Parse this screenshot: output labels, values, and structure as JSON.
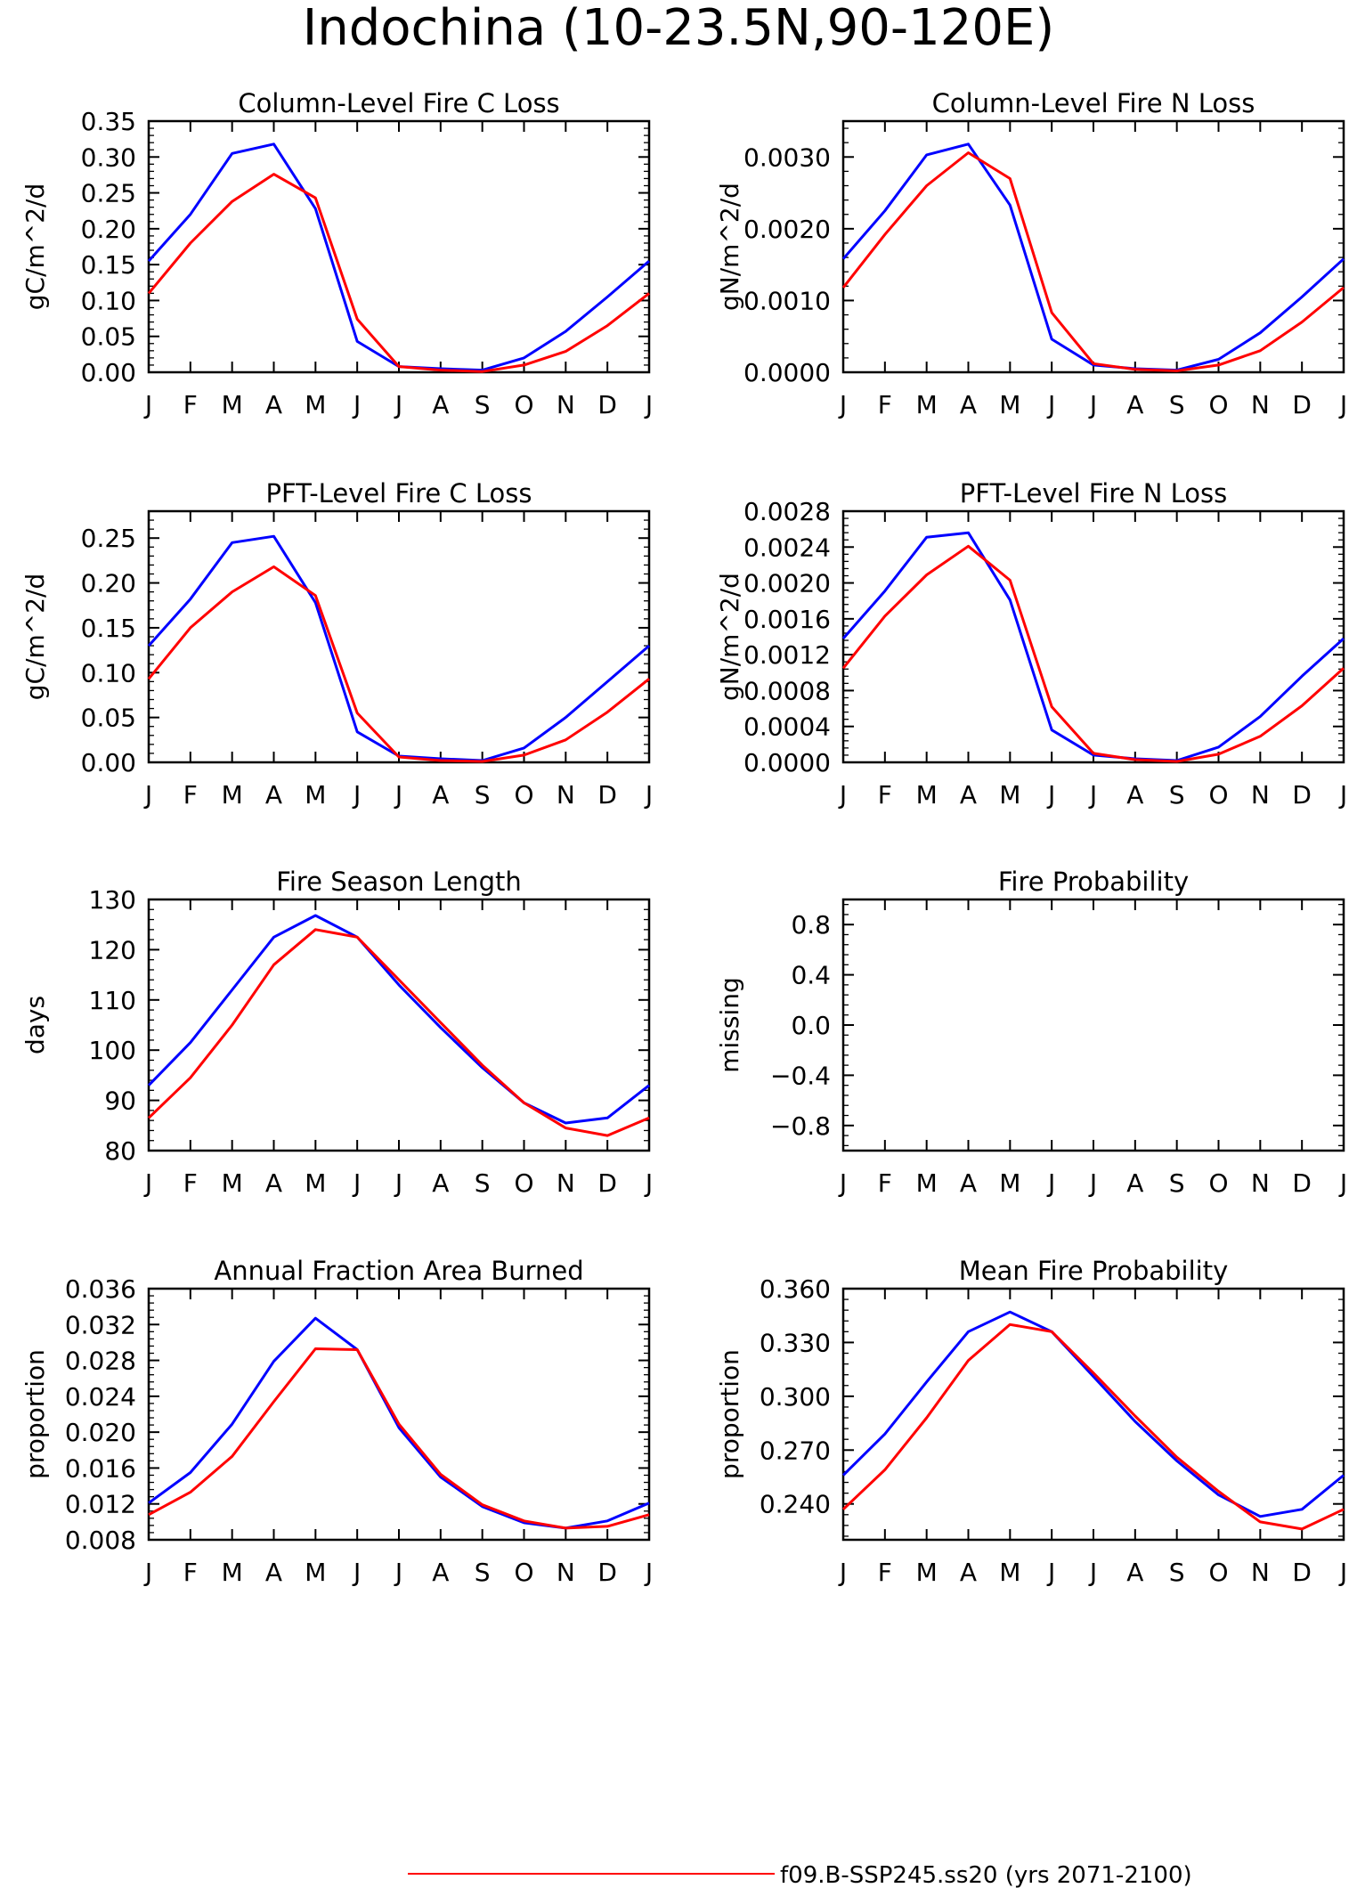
{
  "figure": {
    "title": "Indochina (10-23.5N,90-120E)",
    "legend": [
      {
        "label": "f09.B-SSP245.ss20 (yrs 2071-2100)",
        "color": "#ff0000"
      }
    ]
  },
  "chart_data": [
    {
      "type": "line",
      "title": "Column-Level Fire C Loss",
      "ylabel": "gC/m^2/d",
      "categories": [
        "J",
        "F",
        "M",
        "A",
        "M",
        "J",
        "J",
        "A",
        "S",
        "O",
        "N",
        "D",
        "J"
      ],
      "ylim": [
        0,
        0.35
      ],
      "yticks": [
        "0.00",
        "0.05",
        "0.10",
        "0.15",
        "0.20",
        "0.25",
        "0.30",
        "0.35"
      ],
      "series": [
        {
          "color": "#0000ff",
          "values": [
            0.155,
            0.22,
            0.305,
            0.318,
            0.228,
            0.043,
            0.008,
            0.005,
            0.003,
            0.02,
            0.057,
            0.105,
            0.155
          ]
        },
        {
          "color": "#ff0000",
          "values": [
            0.11,
            0.18,
            0.238,
            0.276,
            0.243,
            0.074,
            0.008,
            0.003,
            0.001,
            0.01,
            0.029,
            0.065,
            0.11
          ]
        }
      ]
    },
    {
      "type": "line",
      "title": "Column-Level Fire N Loss",
      "ylabel": "gN/m^2/d",
      "categories": [
        "J",
        "F",
        "M",
        "A",
        "M",
        "J",
        "J",
        "A",
        "S",
        "O",
        "N",
        "D",
        "J"
      ],
      "ylim": [
        0,
        0.0035
      ],
      "yticks": [
        "0.0000",
        "0.0010",
        "0.0020",
        "0.0030"
      ],
      "ytick_values": [
        0,
        0.001,
        0.002,
        0.003
      ],
      "series": [
        {
          "color": "#0000ff",
          "values": [
            0.00158,
            0.00225,
            0.00303,
            0.00318,
            0.00233,
            0.00046,
            0.0001,
            5e-05,
            3e-05,
            0.00018,
            0.00055,
            0.00105,
            0.00158
          ]
        },
        {
          "color": "#ff0000",
          "values": [
            0.00118,
            0.00192,
            0.0026,
            0.00306,
            0.0027,
            0.00083,
            0.00012,
            4e-05,
            2e-05,
            0.0001,
            0.0003,
            0.0007,
            0.00118
          ]
        }
      ]
    },
    {
      "type": "line",
      "title": "PFT-Level Fire C Loss",
      "ylabel": "gC/m^2/d",
      "categories": [
        "J",
        "F",
        "M",
        "A",
        "M",
        "J",
        "J",
        "A",
        "S",
        "O",
        "N",
        "D",
        "J"
      ],
      "ylim": [
        0,
        0.28
      ],
      "yticks": [
        "0.00",
        "0.05",
        "0.10",
        "0.15",
        "0.20",
        "0.25"
      ],
      "ytick_values": [
        0,
        0.05,
        0.1,
        0.15,
        0.2,
        0.25
      ],
      "series": [
        {
          "color": "#0000ff",
          "values": [
            0.13,
            0.182,
            0.245,
            0.252,
            0.178,
            0.034,
            0.007,
            0.004,
            0.002,
            0.016,
            0.05,
            0.09,
            0.13
          ]
        },
        {
          "color": "#ff0000",
          "values": [
            0.093,
            0.15,
            0.19,
            0.218,
            0.186,
            0.055,
            0.006,
            0.002,
            0.001,
            0.008,
            0.025,
            0.056,
            0.093
          ]
        }
      ]
    },
    {
      "type": "line",
      "title": "PFT-Level Fire N Loss",
      "ylabel": "gN/m^2/d",
      "categories": [
        "J",
        "F",
        "M",
        "A",
        "M",
        "J",
        "J",
        "A",
        "S",
        "O",
        "N",
        "D",
        "J"
      ],
      "ylim": [
        0,
        0.0028
      ],
      "yticks": [
        "0.0000",
        "0.0004",
        "0.0008",
        "0.0012",
        "0.0016",
        "0.0020",
        "0.0024",
        "0.0028"
      ],
      "series": [
        {
          "color": "#0000ff",
          "values": [
            0.00138,
            0.00191,
            0.00251,
            0.00256,
            0.00181,
            0.00036,
            8e-05,
            4e-05,
            2e-05,
            0.00017,
            0.00051,
            0.00096,
            0.00138
          ]
        },
        {
          "color": "#ff0000",
          "values": [
            0.00105,
            0.00163,
            0.00209,
            0.00241,
            0.00203,
            0.00062,
            0.0001,
            3e-05,
            1e-05,
            9e-05,
            0.00029,
            0.00063,
            0.00105
          ]
        }
      ]
    },
    {
      "type": "line",
      "title": "Fire Season Length",
      "ylabel": "days",
      "categories": [
        "J",
        "F",
        "M",
        "A",
        "M",
        "J",
        "J",
        "A",
        "S",
        "O",
        "N",
        "D",
        "J"
      ],
      "ylim": [
        80,
        130
      ],
      "yticks": [
        "80",
        "90",
        "100",
        "110",
        "120",
        "130"
      ],
      "series": [
        {
          "color": "#0000ff",
          "values": [
            93,
            101.5,
            112,
            122.5,
            126.8,
            122.5,
            113,
            104.5,
            96.5,
            89.5,
            85.5,
            86.5,
            93
          ]
        },
        {
          "color": "#ff0000",
          "values": [
            86.5,
            94.5,
            105,
            117,
            124,
            122.5,
            114,
            105.5,
            97,
            89.5,
            84.5,
            83,
            86.5
          ]
        }
      ]
    },
    {
      "type": "line",
      "title": "Fire Probability",
      "ylabel": "missing",
      "categories": [
        "J",
        "F",
        "M",
        "A",
        "M",
        "J",
        "J",
        "A",
        "S",
        "O",
        "N",
        "D",
        "J"
      ],
      "ylim": [
        -1,
        1
      ],
      "yticks": [
        "-0.8",
        "-0.4",
        "0.0",
        "0.4",
        "0.8"
      ],
      "ytick_values": [
        -0.8,
        -0.4,
        0,
        0.4,
        0.8
      ],
      "series": []
    },
    {
      "type": "line",
      "title": "Annual Fraction Area Burned",
      "ylabel": "proportion",
      "categories": [
        "J",
        "F",
        "M",
        "A",
        "M",
        "J",
        "J",
        "A",
        "S",
        "O",
        "N",
        "D",
        "J"
      ],
      "ylim": [
        0.008,
        0.036
      ],
      "yticks": [
        "0.008",
        "0.012",
        "0.016",
        "0.020",
        "0.024",
        "0.028",
        "0.032",
        "0.036"
      ],
      "series": [
        {
          "color": "#0000ff",
          "values": [
            0.0121,
            0.0155,
            0.0209,
            0.0279,
            0.0327,
            0.0292,
            0.0205,
            0.015,
            0.0117,
            0.0099,
            0.0093,
            0.0101,
            0.0121
          ]
        },
        {
          "color": "#ff0000",
          "values": [
            0.0108,
            0.0133,
            0.0173,
            0.0234,
            0.0293,
            0.0292,
            0.0209,
            0.0153,
            0.0119,
            0.0101,
            0.0093,
            0.0095,
            0.0108
          ]
        }
      ]
    },
    {
      "type": "line",
      "title": "Mean Fire Probability",
      "ylabel": "proportion",
      "categories": [
        "J",
        "F",
        "M",
        "A",
        "M",
        "J",
        "J",
        "A",
        "S",
        "O",
        "N",
        "D",
        "J"
      ],
      "ylim": [
        0.22,
        0.36
      ],
      "yticks": [
        "0.240",
        "0.270",
        "0.300",
        "0.330",
        "0.360"
      ],
      "ytick_values": [
        0.24,
        0.27,
        0.3,
        0.33,
        0.36
      ],
      "series": [
        {
          "color": "#0000ff",
          "values": [
            0.256,
            0.279,
            0.308,
            0.336,
            0.347,
            0.336,
            0.311,
            0.286,
            0.264,
            0.245,
            0.233,
            0.237,
            0.256
          ]
        },
        {
          "color": "#ff0000",
          "values": [
            0.237,
            0.259,
            0.288,
            0.32,
            0.34,
            0.336,
            0.313,
            0.289,
            0.266,
            0.247,
            0.23,
            0.226,
            0.237
          ]
        }
      ]
    }
  ]
}
